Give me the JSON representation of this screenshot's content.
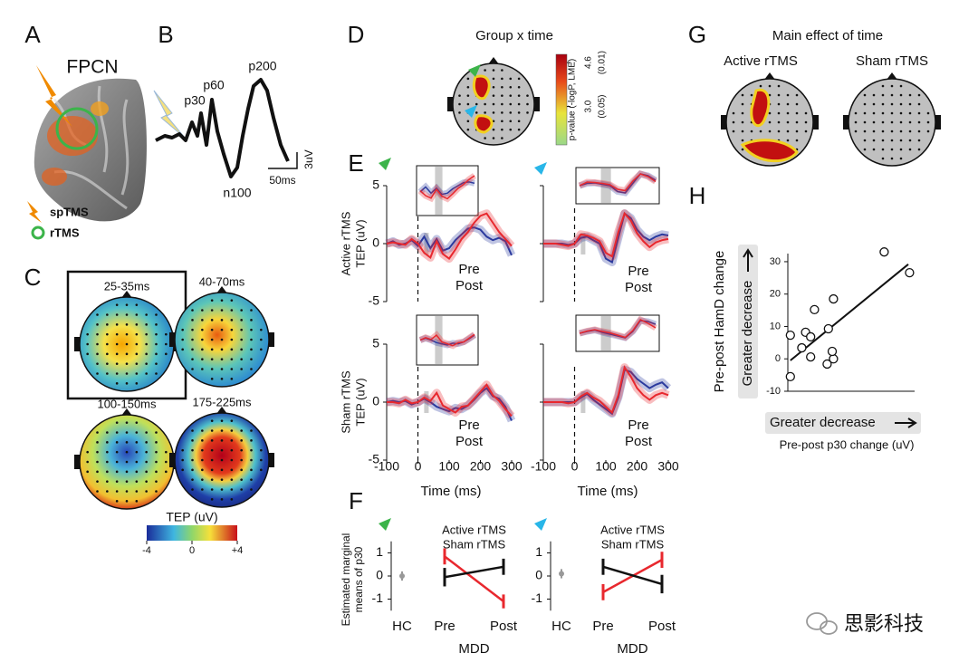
{
  "panel_a": {
    "letter": "A",
    "title": "FPCN",
    "legend": [
      "spTMS",
      "rTMS"
    ]
  },
  "panel_b": {
    "letter": "B",
    "peaks": [
      "p30",
      "p60",
      "p200",
      "n100"
    ],
    "scale": [
      "3uV",
      "50ms"
    ]
  },
  "panel_c": {
    "letter": "C",
    "maps": [
      "25-35ms",
      "40-70ms",
      "100-150ms",
      "175-225ms"
    ],
    "colorbar": {
      "title": "TEP (uV)",
      "lim": [
        -4,
        4
      ],
      "ticks": [
        -4,
        0,
        {
          "value": 4,
          "label": "+4"
        }
      ]
    }
  },
  "panel_d": {
    "letter": "D",
    "title": "Group x time",
    "colorbar": {
      "title": "p-value (-logP, LME)",
      "lim": [
        1.6,
        4.9
      ],
      "ticks": [
        4.6,
        {
          "value": 3.0,
          "label": "3.0"
        }
      ],
      "tick_notes": [
        "(0.01)",
        "(0.05)"
      ]
    }
  },
  "panel_e": {
    "letter": "E",
    "type": "line",
    "xlabel": "Time (ms)",
    "x": [
      -100,
      -80,
      -60,
      -40,
      -20,
      0,
      20,
      40,
      60,
      80,
      100,
      120,
      140,
      160,
      180,
      200,
      220,
      240,
      260,
      280,
      300
    ],
    "xlim": [
      -100,
      300
    ],
    "xticks": [
      -100,
      0,
      100,
      200,
      300
    ],
    "ylim": [
      -5,
      5
    ],
    "yticks": [
      5,
      0,
      -5
    ],
    "rows": [
      {
        "ylabel": [
          "Active rTMS",
          "TEP (uV)"
        ]
      },
      {
        "ylabel": [
          "Sham rTMS",
          "TEP (uV)"
        ]
      }
    ],
    "charts": [
      {
        "series": [
          {
            "name": "Pre",
            "color": "#2b3a9e",
            "values": [
              0,
              0.2,
              -0.1,
              0,
              0.3,
              -0.2,
              0.6,
              -0.4,
              0.4,
              -0.6,
              -0.4,
              0.3,
              0.8,
              1.3,
              1.4,
              1.2,
              0.6,
              0.3,
              0.5,
              0.2,
              -1.0
            ]
          },
          {
            "name": "Post",
            "color": "#e8282e",
            "values": [
              0,
              0.1,
              0,
              -0.1,
              0.4,
              0,
              -0.8,
              -1.2,
              0.2,
              -0.9,
              -1.3,
              -0.5,
              0.4,
              1.0,
              1.8,
              2.4,
              2.6,
              1.8,
              1.0,
              0.4,
              -0.2
            ]
          }
        ]
      },
      {
        "series": [
          {
            "name": "Pre",
            "color": "#2b3a9e",
            "values": [
              0,
              0,
              0,
              0,
              -0.1,
              0,
              0.5,
              0.6,
              0.3,
              0,
              -1.3,
              -1.6,
              0.5,
              2.6,
              2.2,
              1.2,
              0.6,
              0.3,
              0.6,
              0.8,
              0.7
            ]
          },
          {
            "name": "Post",
            "color": "#e8282e",
            "values": [
              0,
              0,
              0,
              -0.1,
              -0.2,
              0,
              0.8,
              0.7,
              0.5,
              0.2,
              -0.8,
              -1.1,
              1.0,
              2.6,
              2.0,
              0.9,
              0.2,
              -0.3,
              0.1,
              0.3,
              0.4
            ]
          }
        ]
      },
      {
        "series": [
          {
            "name": "Pre",
            "color": "#2b3a9e",
            "values": [
              0,
              0.1,
              0,
              0.1,
              -0.2,
              0,
              0.3,
              0,
              -0.4,
              -0.6,
              -0.8,
              -0.5,
              -0.6,
              -0.3,
              0.2,
              0.8,
              1.2,
              0.5,
              0.3,
              -0.4,
              -1.6
            ]
          },
          {
            "name": "Post",
            "color": "#e8282e",
            "values": [
              0,
              0,
              -0.1,
              0.2,
              -0.1,
              0,
              0.4,
              0.1,
              0.8,
              -0.3,
              -0.6,
              -0.9,
              -0.4,
              -0.3,
              0.3,
              0.9,
              1.5,
              0.6,
              0.1,
              -0.6,
              -1.2
            ]
          }
        ]
      },
      {
        "series": [
          {
            "name": "Pre",
            "color": "#2b3a9e",
            "values": [
              0,
              0,
              0,
              0,
              0,
              0,
              0.4,
              0.7,
              0.2,
              -0.2,
              -0.6,
              -1.0,
              0.4,
              2.8,
              2.6,
              2.0,
              1.6,
              1.2,
              1.5,
              1.7,
              1.2
            ]
          },
          {
            "name": "Post",
            "color": "#e8282e",
            "values": [
              0,
              0,
              0,
              0,
              -0.1,
              0,
              0.5,
              0.8,
              0.4,
              0.1,
              -0.4,
              -0.9,
              0.6,
              3.0,
              2.2,
              1.2,
              0.6,
              0.2,
              0.6,
              0.8,
              0.6
            ]
          }
        ]
      }
    ]
  },
  "panel_f": {
    "letter": "F",
    "type": "line",
    "ylabel": [
      "Estimated marginal",
      "means of p30"
    ],
    "categories": [
      "HC",
      "Pre",
      "Post"
    ],
    "group_label": "MDD",
    "ylim": [
      -1.5,
      1.5
    ],
    "yticks": [
      1,
      0,
      -1
    ],
    "charts": [
      {
        "hc_value": 0,
        "hc_error": 0.2,
        "series": [
          {
            "name": "Active rTMS",
            "color": "#e8282e",
            "values": [
              null,
              0.85,
              -1.1
            ],
            "errors": [
              null,
              0.35,
              0.3
            ]
          },
          {
            "name": "Sham rTMS",
            "color": "#111111",
            "values": [
              null,
              -0.05,
              0.4
            ],
            "errors": [
              null,
              0.4,
              0.35
            ]
          }
        ]
      },
      {
        "hc_value": 0.1,
        "hc_error": 0.2,
        "series": [
          {
            "name": "Active rTMS",
            "color": "#e8282e",
            "values": [
              null,
              -0.7,
              0.7
            ],
            "errors": [
              null,
              0.35,
              0.35
            ]
          },
          {
            "name": "Sham rTMS",
            "color": "#111111",
            "values": [
              null,
              0.4,
              -0.35
            ],
            "errors": [
              null,
              0.35,
              0.4
            ]
          }
        ]
      }
    ]
  },
  "panel_g": {
    "letter": "G",
    "title": "Main effect of time",
    "maps": [
      "Active rTMS",
      "Sham rTMS"
    ]
  },
  "panel_h": {
    "letter": "H",
    "type": "scatter",
    "ylabel": "Pre-post HamD change",
    "ybox": "Greater decrease",
    "xbox": "Greater decrease",
    "xlabel": "Pre-post p30 change (uV)",
    "xlim": [
      0,
      10
    ],
    "ylim": [
      -10,
      32.5
    ],
    "yticks": [
      30,
      20,
      10,
      0,
      -10
    ],
    "x": [
      0.2,
      0.2,
      1.1,
      1.4,
      1.8,
      2.1,
      1.8,
      3.1,
      3.2,
      3.6,
      3.6,
      3.5,
      7.6,
      9.6
    ],
    "y": [
      7.3,
      -5.5,
      3.4,
      8.2,
      6.8,
      15.2,
      0.6,
      -1.6,
      9.3,
      0,
      18.5,
      2.3,
      33,
      26.6
    ],
    "fit": {
      "x": [
        0.2,
        9.5
      ],
      "y": [
        -0.5,
        29.2
      ]
    }
  },
  "watermark": "思影科技"
}
